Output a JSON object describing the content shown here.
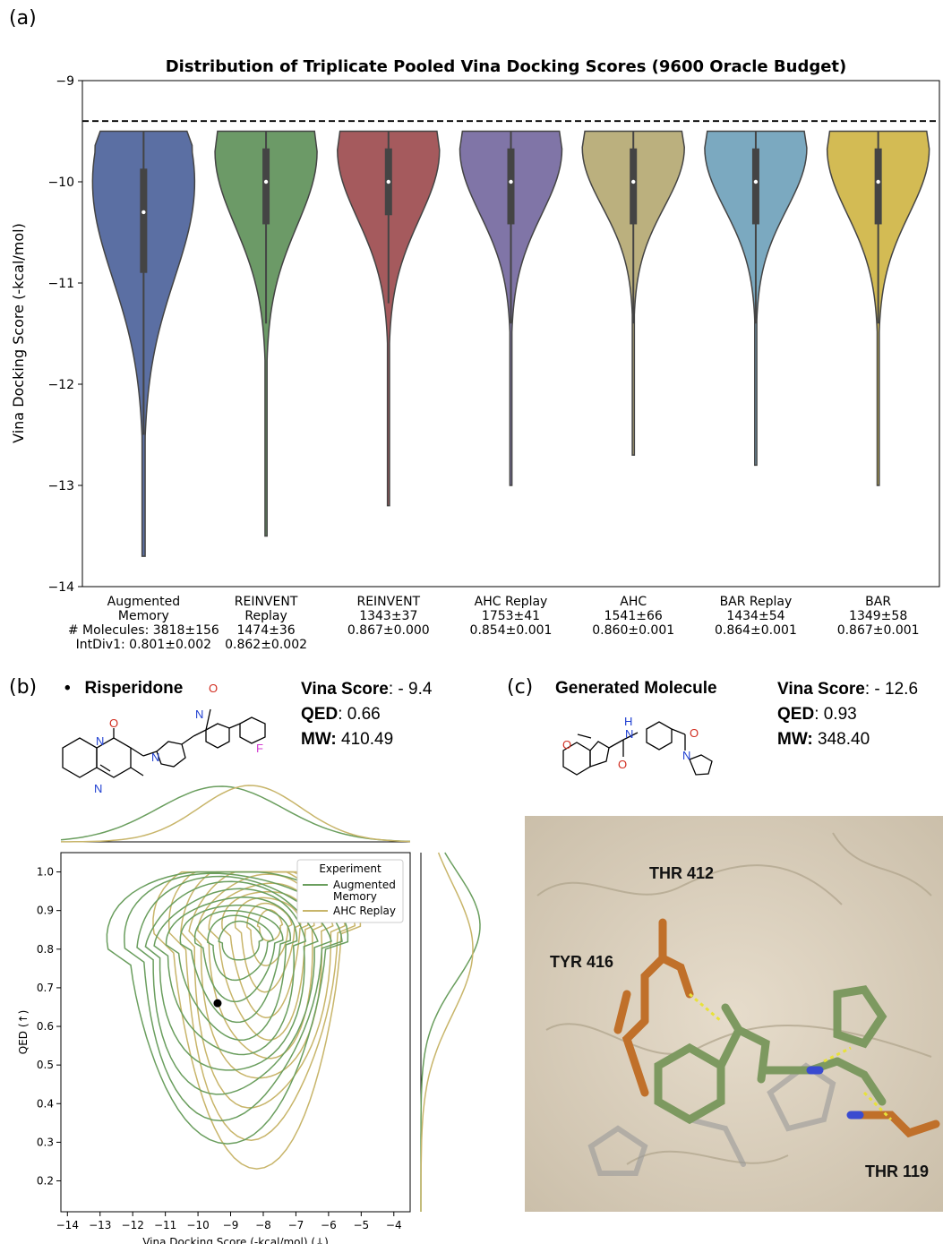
{
  "panel_labels": {
    "a": "(a)",
    "b": "(b)",
    "c": "(c)"
  },
  "chart_data": [
    {
      "type": "violin",
      "title": "Distribution of Triplicate Pooled Vina Docking Scores (9600 Oracle Budget)",
      "ylabel": "Vina Docking Score (-kcal/mol)",
      "ylim": [
        -14,
        -9
      ],
      "yticks": [
        "−14",
        "−13",
        "−12",
        "−11",
        "−10",
        "−9"
      ],
      "reference_line": -9.4,
      "row_labels": [
        "# Molecules:",
        "IntDiv1:"
      ],
      "series": [
        {
          "name": "Augmented Memory",
          "name_lines": [
            "Augmented",
            "Memory"
          ],
          "color": "#5b6fa3",
          "molecules": "3818±156",
          "intdiv1": "0.801±0.002",
          "min": -13.7,
          "max": -9.5,
          "q1": -10.9,
          "median": -10.3,
          "q3": -9.87,
          "whisker_low": -12.5
        },
        {
          "name": "REINVENT Replay",
          "name_lines": [
            "REINVENT",
            "Replay"
          ],
          "color": "#6c9a67",
          "molecules": "1474±36",
          "intdiv1": "0.862±0.002",
          "min": -13.5,
          "max": -9.5,
          "q1": -10.42,
          "median": -10.0,
          "q3": -9.67,
          "whisker_low": -11.4
        },
        {
          "name": "REINVENT",
          "name_lines": [
            "REINVENT"
          ],
          "color": "#a55a5d",
          "molecules": "1343±37",
          "intdiv1": "0.867±0.000",
          "min": -13.2,
          "max": -9.5,
          "q1": -10.33,
          "median": -10.0,
          "q3": -9.67,
          "whisker_low": -11.2
        },
        {
          "name": "AHC Replay",
          "name_lines": [
            "AHC Replay"
          ],
          "color": "#8075a7",
          "molecules": "1753±41",
          "intdiv1": "0.854±0.001",
          "min": -13.0,
          "max": -9.5,
          "q1": -10.42,
          "median": -10.0,
          "q3": -9.67,
          "whisker_low": -11.4
        },
        {
          "name": "AHC",
          "name_lines": [
            "AHC"
          ],
          "color": "#bbb07e",
          "molecules": "1541±66",
          "intdiv1": "0.860±0.001",
          "min": -12.7,
          "max": -9.5,
          "q1": -10.42,
          "median": -10.0,
          "q3": -9.67,
          "whisker_low": -11.4
        },
        {
          "name": "BAR Replay",
          "name_lines": [
            "BAR Replay"
          ],
          "color": "#7ba9c0",
          "molecules": "1434±54",
          "intdiv1": "0.864±0.001",
          "min": -12.8,
          "max": -9.5,
          "q1": -10.42,
          "median": -10.0,
          "q3": -9.67,
          "whisker_low": -11.4
        },
        {
          "name": "BAR",
          "name_lines": [
            "BAR"
          ],
          "color": "#d3bb54",
          "molecules": "1349±58",
          "intdiv1": "0.867±0.001",
          "min": -13.0,
          "max": -9.5,
          "q1": -10.42,
          "median": -10.0,
          "q3": -9.67,
          "whisker_low": -11.4
        }
      ]
    },
    {
      "type": "kde_contour",
      "xlabel": "Vina Docking Score (-kcal/mol) (↓)",
      "ylabel": "QED (↑)",
      "xlim": [
        -14.2,
        -3.5
      ],
      "ylim": [
        0.12,
        1.05
      ],
      "xticks": [
        -14,
        -13,
        -12,
        -11,
        -10,
        -9,
        -8,
        -7,
        -6,
        -5,
        -4
      ],
      "yticks": [
        0.2,
        0.3,
        0.4,
        0.5,
        0.6,
        0.7,
        0.8,
        0.9,
        1.0
      ],
      "legend_title": "Experiment",
      "legend_loc": "upper right",
      "series": [
        {
          "name": "Augmented Memory",
          "name_lines": [
            "Augmented",
            "Memory"
          ],
          "color": "#6a9e5e",
          "center": [
            -9.3,
            0.78
          ],
          "levels": 10
        },
        {
          "name": "AHC Replay",
          "color": "#c8b56a",
          "center": [
            -8.2,
            0.85
          ],
          "levels": 10
        }
      ],
      "marker": {
        "x": -9.4,
        "y": 0.66,
        "color": "#000000"
      }
    }
  ],
  "risperidone": {
    "bullet": "•",
    "name": "Risperidone",
    "vina_label": "Vina Score",
    "vina_value": ": - 9.4",
    "qed_label": "QED",
    "qed_value": ": 0.66",
    "mw_label": "MW:",
    "mw_value": " 410.49",
    "atoms": {
      "O": "O",
      "N1": "N",
      "N2": "N",
      "N3": "N",
      "N4": "N",
      "O2": "O",
      "F": "F"
    }
  },
  "generated": {
    "name": "Generated Molecule",
    "vina_label": "Vina Score",
    "vina_value": ": - 12.6",
    "qed_label": "QED",
    "qed_value": ": 0.93",
    "mw_label": "MW:",
    "mw_value": " 348.40",
    "atoms": {
      "O1": "O",
      "NH_H": "H",
      "NH_N": "N",
      "O2": "O",
      "O3": "O",
      "N": "N"
    }
  },
  "residues": {
    "thr412": "THR 412",
    "tyr416": "TYR 416",
    "thr119": "THR 119"
  }
}
